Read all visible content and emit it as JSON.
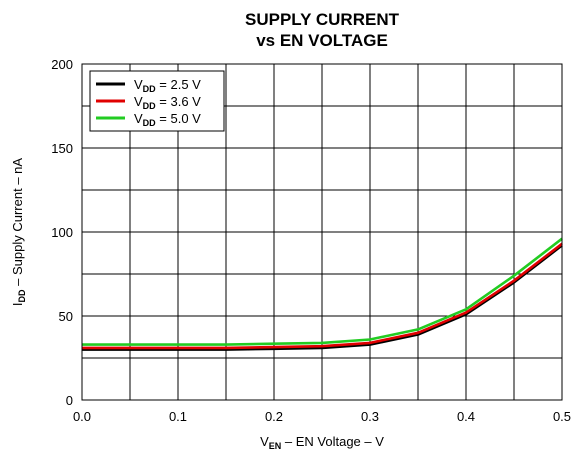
{
  "chart_data": {
    "type": "line",
    "title": [
      "SUPPLY CURRENT",
      "vs EN VOLTAGE"
    ],
    "xlabel": {
      "main": "V",
      "sub": "EN",
      "rest": " – EN Voltage – V"
    },
    "ylabel": {
      "main": "I",
      "sub": "DD",
      "rest": " – Supply Current – nA"
    },
    "xlim": [
      0,
      0.5
    ],
    "ylim": [
      0,
      200
    ],
    "xticks": [
      0.0,
      0.1,
      0.2,
      0.3,
      0.4,
      0.5
    ],
    "xtick_labels": [
      "0.0",
      "0.1",
      "0.2",
      "0.3",
      "0.4",
      "0.5"
    ],
    "yticks": [
      0,
      50,
      100,
      150,
      200
    ],
    "ytick_labels": [
      "0",
      "50",
      "100",
      "150",
      "200"
    ],
    "grid": true,
    "legend_position": "top-left",
    "x": [
      0.0,
      0.05,
      0.1,
      0.15,
      0.2,
      0.25,
      0.3,
      0.35,
      0.4,
      0.45,
      0.5
    ],
    "series": [
      {
        "name_main": "V",
        "name_sub": "DD",
        "name_rest": " = 2.5 V",
        "color": "#000000",
        "values": [
          30,
          30,
          30,
          30,
          30.5,
          31,
          33,
          39,
          51,
          70,
          92
        ]
      },
      {
        "name_main": "V",
        "name_sub": "DD",
        "name_rest": " = 3.6 V",
        "color": "#e00000",
        "values": [
          31,
          31,
          31,
          31,
          31.5,
          32,
          34,
          40,
          52,
          71,
          93
        ]
      },
      {
        "name_main": "V",
        "name_sub": "DD",
        "name_rest": " = 5.0 V",
        "color": "#22cc22",
        "values": [
          33,
          33,
          33,
          33,
          33.5,
          34,
          36,
          42,
          54,
          74,
          96
        ]
      }
    ]
  }
}
